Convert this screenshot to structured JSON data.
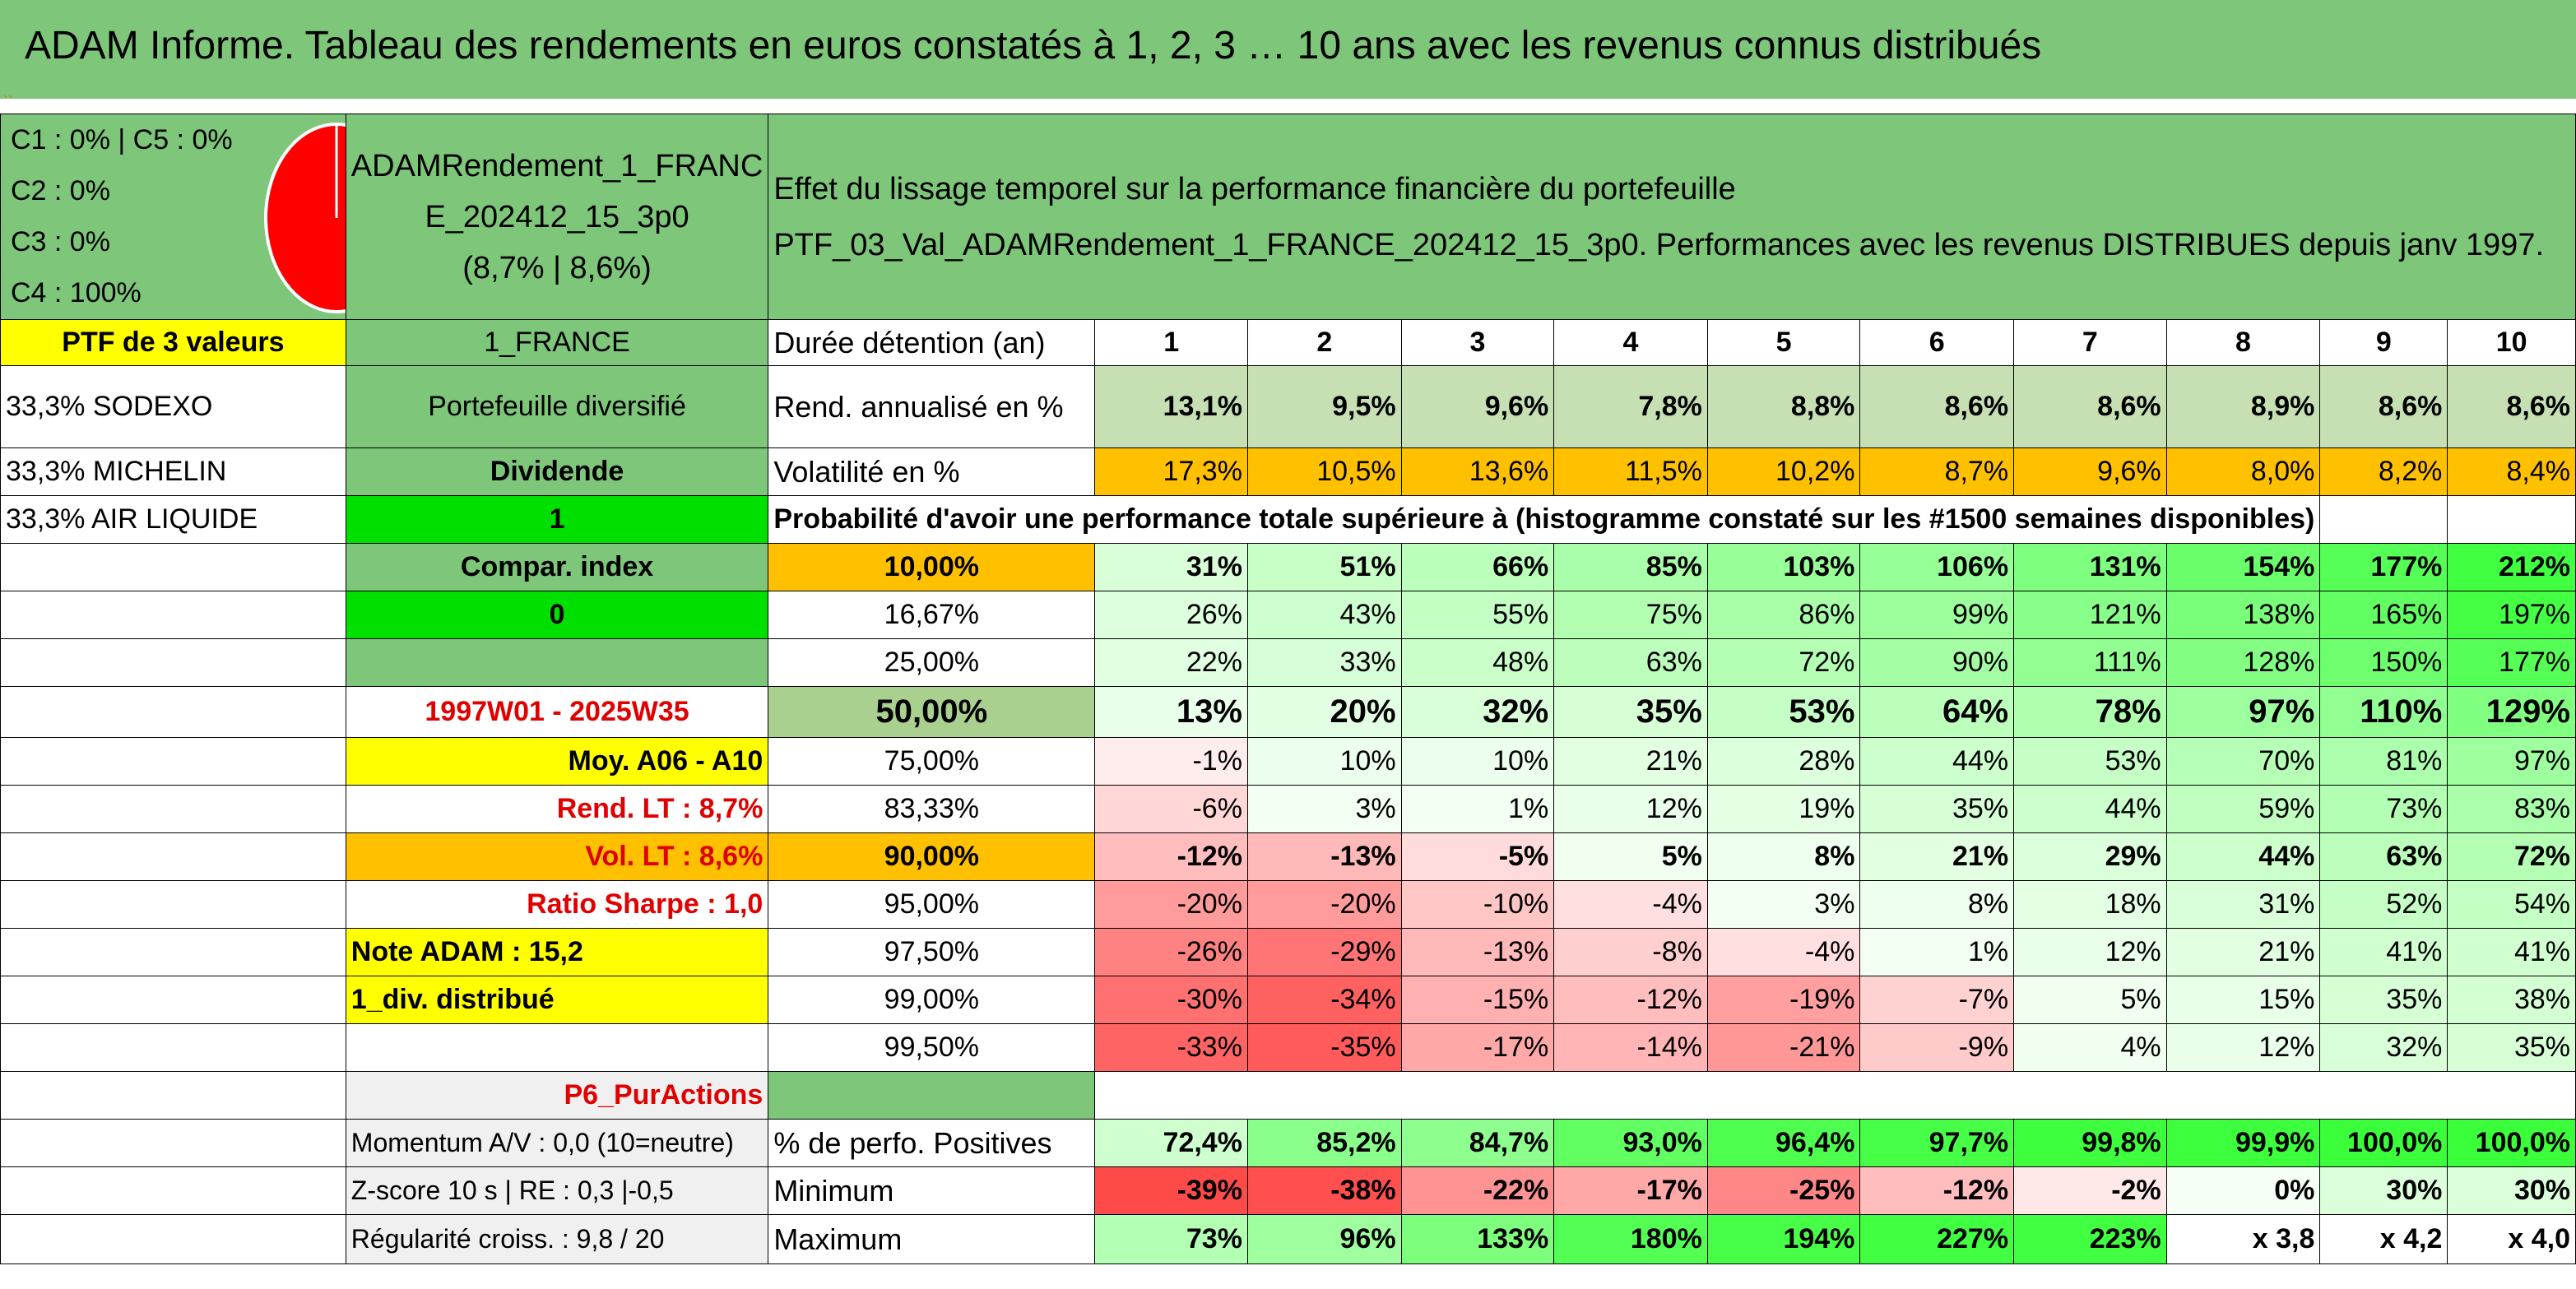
{
  "title": "ADAM Informe. Tableau des rendements en euros constatés à 1, 2, 3 … 10 ans avec les revenus connus distribués",
  "strip_mark": "``",
  "legend": [
    "C1 : 0% | C5 : 0%",
    "C2 : 0%",
    "C3 : 0%",
    "C4 : 100%"
  ],
  "pie": {
    "color": "#ff0000",
    "values": [
      0,
      0,
      0,
      100,
      0
    ]
  },
  "portfolio_name": [
    "ADAMRendement_1_FRANC",
    "E_202412_15_3p0",
    "(8,7% | 8,6%)"
  ],
  "description": [
    "Effet du lissage temporel sur la performance financière du portefeuille",
    "PTF_03_Val_ADAMRendement_1_FRANCE_202412_15_3p0. Performances avec les revenus DISTRIBUES depuis janv 1997."
  ],
  "ptf_label": "PTF de 3 valeurs",
  "holdings": [
    "33,3% SODEXO",
    "33,3% MICHELIN",
    "33,3% AIR LIQUIDE"
  ],
  "info": {
    "country": "1_FRANCE",
    "type": "Portefeuille diversifié",
    "dividend_label": "Dividende",
    "dividend_value": "1",
    "compar_label": "Compar. index",
    "compar_value": "0",
    "period": "1997W01 - 2025W35",
    "moy": "Moy. A06 - A10",
    "rend_lt": "Rend. LT : 8,7%",
    "vol_lt": "Vol. LT : 8,6%",
    "sharpe": "Ratio Sharpe : 1,0",
    "note": "Note ADAM : 15,2",
    "div": "1_div. distribué",
    "p6": "P6_PurActions",
    "momentum": "Momentum A/V : 0,0 (10=neutre)",
    "zscore": "Z-score 10 s | RE : 0,3 |-0,5",
    "regularite": "Régularité croiss. : 9,8 / 20"
  },
  "duration_label": "Durée détention (an)",
  "years": [
    "1",
    "2",
    "3",
    "4",
    "5",
    "6",
    "7",
    "8",
    "9",
    "10"
  ],
  "rend_label": "Rend. annualisé en %",
  "rend": [
    "13,1%",
    "9,5%",
    "9,6%",
    "7,8%",
    "8,8%",
    "8,6%",
    "8,6%",
    "8,9%",
    "8,6%",
    "8,6%"
  ],
  "vol_label": "Volatilité en %",
  "vol": [
    "17,3%",
    "10,5%",
    "13,6%",
    "11,5%",
    "10,2%",
    "8,7%",
    "9,6%",
    "8,0%",
    "8,2%",
    "8,4%"
  ],
  "proba_title": "Probabilité d'avoir une performance totale supérieure à (histogramme constaté sur les #1500 semaines disponibles)",
  "proba_rows": [
    {
      "p": "10,00%",
      "v": [
        "31%",
        "51%",
        "66%",
        "85%",
        "103%",
        "106%",
        "131%",
        "154%",
        "177%",
        "212%"
      ]
    },
    {
      "p": "16,67%",
      "v": [
        "26%",
        "43%",
        "55%",
        "75%",
        "86%",
        "99%",
        "121%",
        "138%",
        "165%",
        "197%"
      ]
    },
    {
      "p": "25,00%",
      "v": [
        "22%",
        "33%",
        "48%",
        "63%",
        "72%",
        "90%",
        "111%",
        "128%",
        "150%",
        "177%"
      ]
    },
    {
      "p": "50,00%",
      "v": [
        "13%",
        "20%",
        "32%",
        "35%",
        "53%",
        "64%",
        "78%",
        "97%",
        "110%",
        "129%"
      ]
    },
    {
      "p": "75,00%",
      "v": [
        "-1%",
        "10%",
        "10%",
        "21%",
        "28%",
        "44%",
        "53%",
        "70%",
        "81%",
        "97%"
      ]
    },
    {
      "p": "83,33%",
      "v": [
        "-6%",
        "3%",
        "1%",
        "12%",
        "19%",
        "35%",
        "44%",
        "59%",
        "73%",
        "83%"
      ]
    },
    {
      "p": "90,00%",
      "v": [
        "-12%",
        "-13%",
        "-5%",
        "5%",
        "8%",
        "21%",
        "29%",
        "44%",
        "63%",
        "72%"
      ]
    },
    {
      "p": "95,00%",
      "v": [
        "-20%",
        "-20%",
        "-10%",
        "-4%",
        "3%",
        "8%",
        "18%",
        "31%",
        "52%",
        "54%"
      ]
    },
    {
      "p": "97,50%",
      "v": [
        "-26%",
        "-29%",
        "-13%",
        "-8%",
        "-4%",
        "1%",
        "12%",
        "21%",
        "41%",
        "41%"
      ]
    },
    {
      "p": "99,00%",
      "v": [
        "-30%",
        "-34%",
        "-15%",
        "-12%",
        "-19%",
        "-7%",
        "5%",
        "15%",
        "35%",
        "38%"
      ]
    },
    {
      "p": "99,50%",
      "v": [
        "-33%",
        "-35%",
        "-17%",
        "-14%",
        "-21%",
        "-9%",
        "4%",
        "12%",
        "32%",
        "35%"
      ]
    }
  ],
  "positive_label": "% de perfo. Positives",
  "positive": [
    "72,4%",
    "85,2%",
    "84,7%",
    "93,0%",
    "96,4%",
    "97,7%",
    "99,8%",
    "99,9%",
    "100,0%",
    "100,0%"
  ],
  "min_label": "Minimum",
  "minimum": [
    "-39%",
    "-38%",
    "-22%",
    "-17%",
    "-25%",
    "-12%",
    "-2%",
    "0%",
    "30%",
    "30%"
  ],
  "max_label": "Maximum",
  "maximum": [
    "73%",
    "96%",
    "133%",
    "180%",
    "194%",
    "227%",
    "223%",
    "x 3,8",
    "x 4,2",
    "x 4,0"
  ],
  "colors": {
    "header_green": "#7dc67a",
    "yellow": "#ffff00",
    "orange": "#ffc000",
    "bright_green": "#00e000"
  }
}
